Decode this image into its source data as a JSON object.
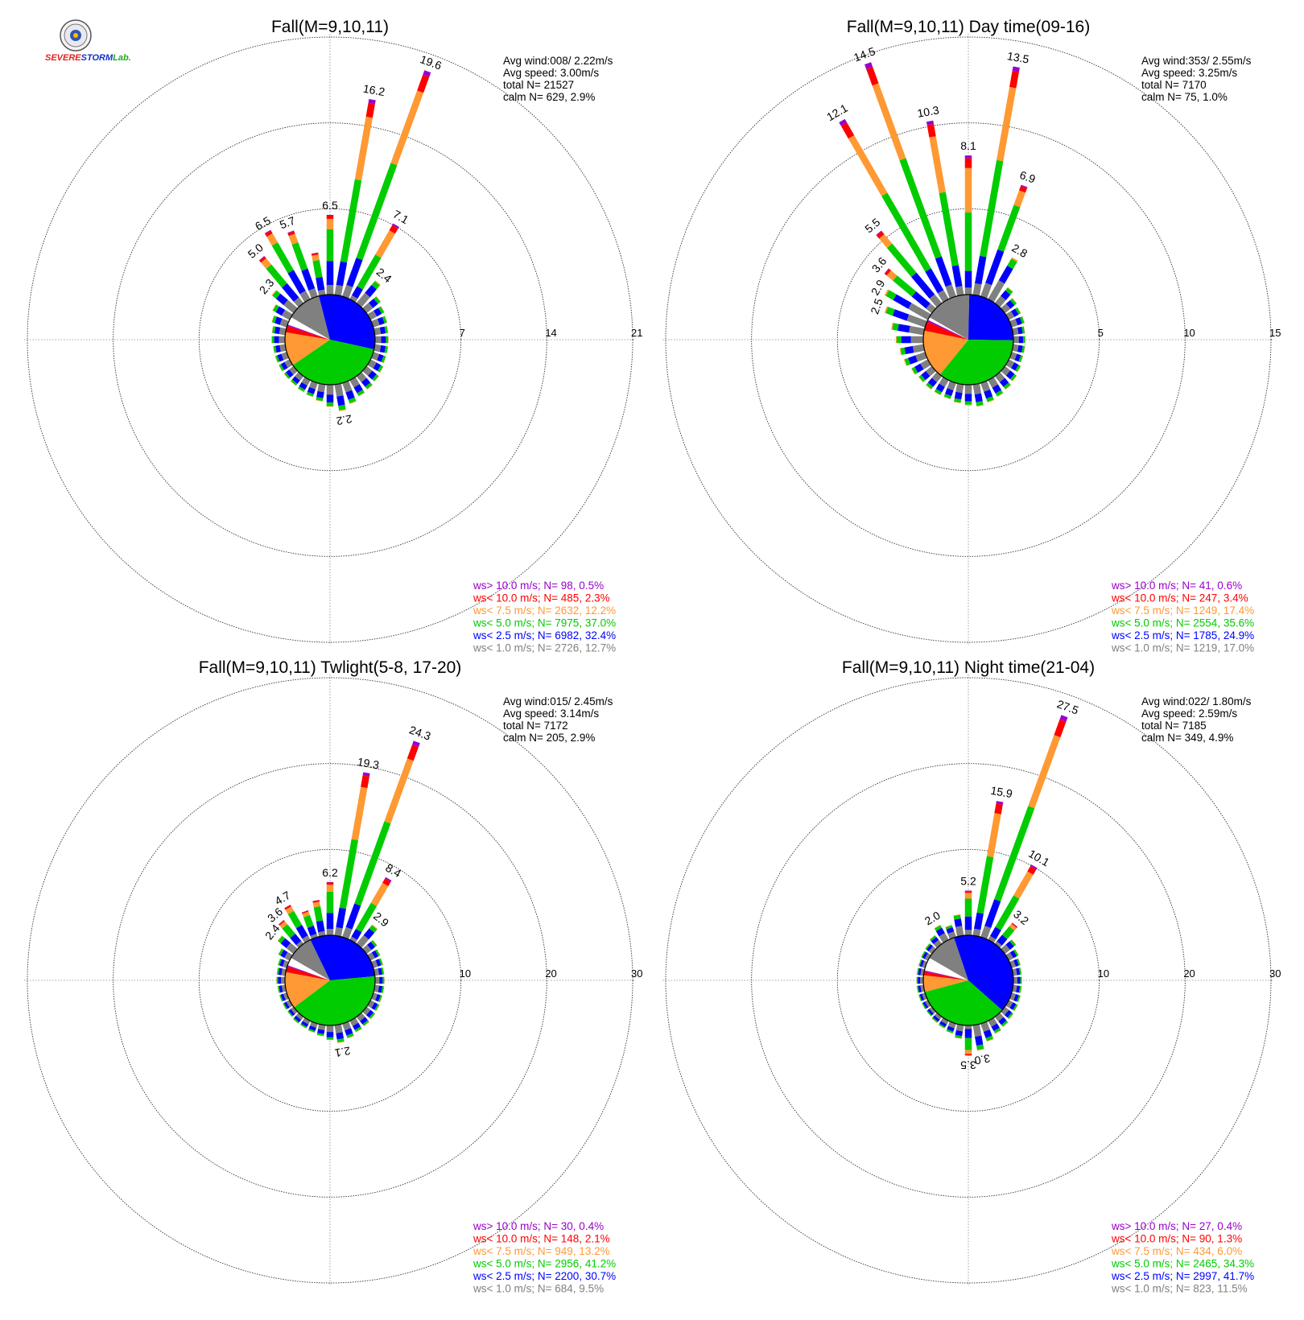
{
  "logo": {
    "text_a": "SEVERE",
    "text_b": "STORM",
    "text_c": "Lab."
  },
  "colors": {
    "gt10": "#9900cc",
    "lt10": "#ff0000",
    "lt75": "#ff9933",
    "lt5": "#00cc00",
    "lt25": "#0000ff",
    "lt1": "#808080"
  },
  "chart_data": [
    {
      "type": "polar-bar (wind rose)",
      "title": "Fall(M=9,10,11)",
      "rings": [
        7,
        14,
        21
      ],
      "stats": [
        "Avg wind:008/ 2.22m/s",
        "Avg speed: 3.00m/s",
        "total N=      21527",
        "calm N=    629,   2.9%"
      ],
      "legend": [
        {
          "text": "ws> 10.0 m/s; N=    98,  0.5%",
          "color": "gt10"
        },
        {
          "text": "ws< 10.0 m/s; N=   485,  2.3%",
          "color": "lt10"
        },
        {
          "text": "ws<  7.5 m/s; N=  2632, 12.2%",
          "color": "lt75"
        },
        {
          "text": "ws<  5.0 m/s; N=  7975, 37.0%",
          "color": "lt5"
        },
        {
          "text": "ws<  2.5 m/s; N=  6982, 32.4%",
          "color": "lt25"
        },
        {
          "text": "ws<  1.0 m/s; N=  2726, 12.7%",
          "color": "lt1"
        }
      ],
      "pie_pct": {
        "lt1": 12.7,
        "lt25": 32.4,
        "lt5": 37.0,
        "lt75": 12.2,
        "lt10": 2.3,
        "gt10": 0.5
      },
      "bars": [
        {
          "dir": 0,
          "total": 6.5,
          "label": "6.5"
        },
        {
          "dir": 10,
          "total": 16.2,
          "label": "16.2"
        },
        {
          "dir": 20,
          "total": 19.6,
          "label": "19.6"
        },
        {
          "dir": 30,
          "total": 7.1,
          "label": "7.1"
        },
        {
          "dir": 40,
          "total": 2.4,
          "label": "2.4"
        },
        {
          "dir": 50,
          "total": 1.5
        },
        {
          "dir": 60,
          "total": 1.3
        },
        {
          "dir": 70,
          "total": 1.2
        },
        {
          "dir": 80,
          "total": 1.1
        },
        {
          "dir": 90,
          "total": 1.1
        },
        {
          "dir": 100,
          "total": 1.1
        },
        {
          "dir": 110,
          "total": 1.1
        },
        {
          "dir": 120,
          "total": 1.2
        },
        {
          "dir": 130,
          "total": 1.3
        },
        {
          "dir": 140,
          "total": 1.4
        },
        {
          "dir": 150,
          "total": 1.5
        },
        {
          "dir": 160,
          "total": 1.8
        },
        {
          "dir": 170,
          "total": 2.2,
          "label": "2.2"
        },
        {
          "dir": 180,
          "total": 1.8
        },
        {
          "dir": 190,
          "total": 1.4
        },
        {
          "dir": 200,
          "total": 1.2
        },
        {
          "dir": 210,
          "total": 1.1
        },
        {
          "dir": 220,
          "total": 1.0
        },
        {
          "dir": 230,
          "total": 1.0
        },
        {
          "dir": 240,
          "total": 1.0
        },
        {
          "dir": 250,
          "total": 1.0
        },
        {
          "dir": 260,
          "total": 1.0
        },
        {
          "dir": 270,
          "total": 1.1
        },
        {
          "dir": 280,
          "total": 1.1
        },
        {
          "dir": 290,
          "total": 1.3
        },
        {
          "dir": 300,
          "total": 1.6
        },
        {
          "dir": 310,
          "total": 2.3,
          "label": "2.3"
        },
        {
          "dir": 320,
          "total": 5.0,
          "label": "5.0"
        },
        {
          "dir": 330,
          "total": 6.5,
          "label": "6.5"
        },
        {
          "dir": 340,
          "total": 5.7,
          "label": "5.7"
        },
        {
          "dir": 350,
          "total": 3.5
        }
      ]
    },
    {
      "type": "polar-bar (wind rose)",
      "title": "Fall(M=9,10,11) Day time(09-16)",
      "rings": [
        5,
        10,
        15
      ],
      "stats": [
        "Avg wind:353/ 2.55m/s",
        "Avg speed: 3.25m/s",
        "total N=       7170",
        "calm N=     75,   1.0%"
      ],
      "legend": [
        {
          "text": "ws> 10.0 m/s; N=    41,  0.6%",
          "color": "gt10"
        },
        {
          "text": "ws< 10.0 m/s; N=   247,  3.4%",
          "color": "lt10"
        },
        {
          "text": "ws<  7.5 m/s; N=  1249, 17.4%",
          "color": "lt75"
        },
        {
          "text": "ws<  5.0 m/s; N=  2554, 35.6%",
          "color": "lt5"
        },
        {
          "text": "ws<  2.5 m/s; N=  1785, 24.9%",
          "color": "lt25"
        },
        {
          "text": "ws<  1.0 m/s; N=  1219, 17.0%",
          "color": "lt1"
        }
      ],
      "pie_pct": {
        "lt1": 17.0,
        "lt25": 24.9,
        "lt5": 35.6,
        "lt75": 17.4,
        "lt10": 3.4,
        "gt10": 0.6
      },
      "bars": [
        {
          "dir": 0,
          "total": 8.1,
          "label": "8.1"
        },
        {
          "dir": 10,
          "total": 13.5,
          "label": "13.5"
        },
        {
          "dir": 20,
          "total": 6.9,
          "label": "6.9"
        },
        {
          "dir": 30,
          "total": 2.8,
          "label": "2.8"
        },
        {
          "dir": 40,
          "total": 1.2
        },
        {
          "dir": 50,
          "total": 0.9
        },
        {
          "dir": 60,
          "total": 0.8
        },
        {
          "dir": 70,
          "total": 0.8
        },
        {
          "dir": 80,
          "total": 0.7
        },
        {
          "dir": 90,
          "total": 0.7
        },
        {
          "dir": 100,
          "total": 0.7
        },
        {
          "dir": 110,
          "total": 0.7
        },
        {
          "dir": 120,
          "total": 0.8
        },
        {
          "dir": 130,
          "total": 0.9
        },
        {
          "dir": 140,
          "total": 1.0
        },
        {
          "dir": 150,
          "total": 1.1
        },
        {
          "dir": 160,
          "total": 1.2
        },
        {
          "dir": 170,
          "total": 1.3
        },
        {
          "dir": 180,
          "total": 1.2
        },
        {
          "dir": 190,
          "total": 1.1
        },
        {
          "dir": 200,
          "total": 1.0
        },
        {
          "dir": 210,
          "total": 1.0
        },
        {
          "dir": 220,
          "total": 1.0
        },
        {
          "dir": 230,
          "total": 1.0
        },
        {
          "dir": 240,
          "total": 1.1
        },
        {
          "dir": 250,
          "total": 1.3
        },
        {
          "dir": 260,
          "total": 1.4
        },
        {
          "dir": 270,
          "total": 1.6
        },
        {
          "dir": 280,
          "total": 1.9
        },
        {
          "dir": 290,
          "total": 2.5,
          "label": "2.5"
        },
        {
          "dir": 300,
          "total": 2.9,
          "label": "2.9"
        },
        {
          "dir": 310,
          "total": 3.6,
          "label": "3.6"
        },
        {
          "dir": 320,
          "total": 5.5,
          "label": "5.5"
        },
        {
          "dir": 330,
          "total": 12.1,
          "label": "12.1"
        },
        {
          "dir": 340,
          "total": 14.5,
          "label": "14.5"
        },
        {
          "dir": 350,
          "total": 10.3,
          "label": "10.3"
        }
      ]
    },
    {
      "type": "polar-bar (wind rose)",
      "title": "Fall(M=9,10,11) Twlight(5-8, 17-20)",
      "rings": [
        10,
        20,
        30
      ],
      "stats": [
        "Avg wind:015/ 2.45m/s",
        "Avg speed: 3.14m/s",
        "total N=       7172",
        "calm N=    205,   2.9%"
      ],
      "legend": [
        {
          "text": "ws> 10.0 m/s; N=    30,  0.4%",
          "color": "gt10"
        },
        {
          "text": "ws< 10.0 m/s; N=   148,  2.1%",
          "color": "lt10"
        },
        {
          "text": "ws<  7.5 m/s; N=   949, 13.2%",
          "color": "lt75"
        },
        {
          "text": "ws<  5.0 m/s; N=  2956, 41.2%",
          "color": "lt5"
        },
        {
          "text": "ws<  2.5 m/s; N=  2200, 30.7%",
          "color": "lt25"
        },
        {
          "text": "ws<  1.0 m/s; N=   684,  9.5%",
          "color": "lt1"
        }
      ],
      "pie_pct": {
        "lt1": 9.5,
        "lt25": 30.7,
        "lt5": 41.2,
        "lt75": 13.2,
        "lt10": 2.1,
        "gt10": 0.4
      },
      "bars": [
        {
          "dir": 0,
          "total": 6.2,
          "label": "6.2"
        },
        {
          "dir": 10,
          "total": 19.3,
          "label": "19.3"
        },
        {
          "dir": 20,
          "total": 24.3,
          "label": "24.3"
        },
        {
          "dir": 30,
          "total": 8.4,
          "label": "8.4"
        },
        {
          "dir": 40,
          "total": 2.9,
          "label": "2.9"
        },
        {
          "dir": 50,
          "total": 1.6
        },
        {
          "dir": 60,
          "total": 1.3
        },
        {
          "dir": 70,
          "total": 1.2
        },
        {
          "dir": 80,
          "total": 1.1
        },
        {
          "dir": 90,
          "total": 1.1
        },
        {
          "dir": 100,
          "total": 1.1
        },
        {
          "dir": 110,
          "total": 1.1
        },
        {
          "dir": 120,
          "total": 1.2
        },
        {
          "dir": 130,
          "total": 1.3
        },
        {
          "dir": 140,
          "total": 1.4
        },
        {
          "dir": 150,
          "total": 1.5
        },
        {
          "dir": 160,
          "total": 1.8
        },
        {
          "dir": 170,
          "total": 2.1,
          "label": "2.1"
        },
        {
          "dir": 180,
          "total": 1.7
        },
        {
          "dir": 190,
          "total": 1.3
        },
        {
          "dir": 200,
          "total": 1.1
        },
        {
          "dir": 210,
          "total": 1.0
        },
        {
          "dir": 220,
          "total": 1.0
        },
        {
          "dir": 230,
          "total": 0.9
        },
        {
          "dir": 240,
          "total": 0.9
        },
        {
          "dir": 250,
          "total": 0.9
        },
        {
          "dir": 260,
          "total": 0.9
        },
        {
          "dir": 270,
          "total": 1.0
        },
        {
          "dir": 280,
          "total": 1.0
        },
        {
          "dir": 290,
          "total": 1.1
        },
        {
          "dir": 300,
          "total": 1.5
        },
        {
          "dir": 310,
          "total": 2.4,
          "label": "2.4"
        },
        {
          "dir": 320,
          "total": 3.6,
          "label": "3.6"
        },
        {
          "dir": 330,
          "total": 4.7,
          "label": "4.7"
        },
        {
          "dir": 340,
          "total": 3.3
        },
        {
          "dir": 350,
          "total": 4.2
        }
      ]
    },
    {
      "type": "polar-bar (wind rose)",
      "title": "Fall(M=9,10,11) Night time(21-04)",
      "rings": [
        10,
        20,
        30
      ],
      "stats": [
        "Avg wind:022/ 1.80m/s",
        "Avg speed: 2.59m/s",
        "total N=       7185",
        "calm N=    349,   4.9%"
      ],
      "legend": [
        {
          "text": "ws> 10.0 m/s; N=    27,  0.4%",
          "color": "gt10"
        },
        {
          "text": "ws< 10.0 m/s; N=    90,  1.3%",
          "color": "lt10"
        },
        {
          "text": "ws<  7.5 m/s; N=   434,  6.0%",
          "color": "lt75"
        },
        {
          "text": "ws<  5.0 m/s; N=  2465, 34.3%",
          "color": "lt5"
        },
        {
          "text": "ws<  2.5 m/s; N=  2997, 41.7%",
          "color": "lt25"
        },
        {
          "text": "ws<  1.0 m/s; N=   823, 11.5%",
          "color": "lt1"
        }
      ],
      "pie_pct": {
        "lt1": 11.5,
        "lt25": 41.7,
        "lt5": 34.3,
        "lt75": 6.0,
        "lt10": 1.3,
        "gt10": 0.4
      },
      "bars": [
        {
          "dir": 0,
          "total": 5.2,
          "label": "5.2"
        },
        {
          "dir": 10,
          "total": 15.9,
          "label": "15.9"
        },
        {
          "dir": 20,
          "total": 27.5,
          "label": "27.5"
        },
        {
          "dir": 30,
          "total": 10.1,
          "label": "10.1"
        },
        {
          "dir": 40,
          "total": 3.2,
          "label": "3.2"
        },
        {
          "dir": 50,
          "total": 1.7
        },
        {
          "dir": 60,
          "total": 1.3
        },
        {
          "dir": 70,
          "total": 1.1
        },
        {
          "dir": 80,
          "total": 1.0
        },
        {
          "dir": 90,
          "total": 1.0
        },
        {
          "dir": 100,
          "total": 1.0
        },
        {
          "dir": 110,
          "total": 1.1
        },
        {
          "dir": 120,
          "total": 1.2
        },
        {
          "dir": 130,
          "total": 1.3
        },
        {
          "dir": 140,
          "total": 1.5
        },
        {
          "dir": 150,
          "total": 1.7
        },
        {
          "dir": 160,
          "total": 2.2
        },
        {
          "dir": 170,
          "total": 3.0,
          "label": "3.0"
        },
        {
          "dir": 180,
          "total": 3.5,
          "label": "3.5"
        },
        {
          "dir": 190,
          "total": 1.6
        },
        {
          "dir": 200,
          "total": 1.2
        },
        {
          "dir": 210,
          "total": 1.0
        },
        {
          "dir": 220,
          "total": 0.9
        },
        {
          "dir": 230,
          "total": 0.8
        },
        {
          "dir": 240,
          "total": 0.8
        },
        {
          "dir": 250,
          "total": 0.8
        },
        {
          "dir": 260,
          "total": 0.8
        },
        {
          "dir": 270,
          "total": 0.8
        },
        {
          "dir": 280,
          "total": 0.8
        },
        {
          "dir": 290,
          "total": 0.8
        },
        {
          "dir": 300,
          "total": 0.9
        },
        {
          "dir": 310,
          "total": 1.0
        },
        {
          "dir": 320,
          "total": 1.3
        },
        {
          "dir": 330,
          "total": 2.0,
          "label": "2.0"
        },
        {
          "dir": 340,
          "total": 1.5
        },
        {
          "dir": 350,
          "total": 2.5
        }
      ]
    }
  ]
}
